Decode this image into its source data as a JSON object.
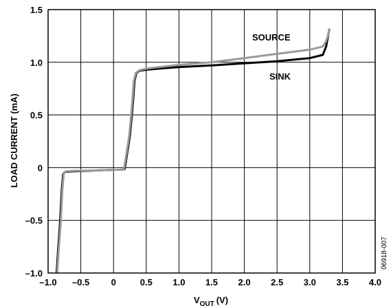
{
  "chart_data": {
    "type": "line",
    "title": "",
    "xlabel": "V",
    "xlabel_subscript": "OUT",
    "xlabel_unit": "(V)",
    "ylabel": "LOAD CURRENT (mA)",
    "xlim": [
      -1.0,
      4.0
    ],
    "ylim": [
      -1.0,
      1.5
    ],
    "x_ticks": [
      "–1.0",
      "–0.5",
      "0",
      "0.5",
      "1.0",
      "1.5",
      "2.0",
      "2.5",
      "3.0",
      "3.5",
      "4.0"
    ],
    "y_ticks": [
      "–1.0",
      "–0.5",
      "0",
      "0.5",
      "1.0",
      "1.5"
    ],
    "y_tick_values": [
      -1.0,
      -0.5,
      0,
      0.5,
      1.0,
      1.5
    ],
    "x_tick_values": [
      -1.0,
      -0.5,
      0,
      0.5,
      1.0,
      1.5,
      2.0,
      2.5,
      3.0,
      3.5,
      4.0
    ],
    "grid": true,
    "figure_id": "06918-007",
    "series": [
      {
        "name": "SINK",
        "color": "#000000",
        "x": [
          -0.87,
          -0.85,
          -0.82,
          -0.79,
          -0.77,
          -0.74,
          -0.6,
          -0.4,
          -0.2,
          0.0,
          0.1,
          0.17,
          0.2,
          0.25,
          0.28,
          0.3,
          0.32,
          0.35,
          0.4,
          0.5,
          0.7,
          1.0,
          1.5,
          2.0,
          2.5,
          3.0,
          3.2,
          3.25,
          3.28,
          3.3
        ],
        "y": [
          -1.0,
          -0.8,
          -0.55,
          -0.2,
          -0.06,
          -0.04,
          -0.035,
          -0.03,
          -0.025,
          -0.02,
          -0.02,
          -0.015,
          0.1,
          0.3,
          0.5,
          0.65,
          0.82,
          0.9,
          0.92,
          0.93,
          0.94,
          0.955,
          0.97,
          0.99,
          1.01,
          1.04,
          1.07,
          1.15,
          1.25,
          1.32
        ]
      },
      {
        "name": "SOURCE",
        "color": "#9a9a9a",
        "x": [
          -0.86,
          -0.84,
          -0.81,
          -0.78,
          -0.76,
          -0.73,
          -0.6,
          -0.4,
          -0.2,
          0.0,
          0.1,
          0.16,
          0.19,
          0.24,
          0.27,
          0.29,
          0.31,
          0.34,
          0.4,
          0.5,
          0.7,
          1.0,
          1.5,
          2.0,
          2.5,
          3.0,
          3.2,
          3.25,
          3.28,
          3.3
        ],
        "y": [
          -1.0,
          -0.8,
          -0.55,
          -0.2,
          -0.05,
          -0.035,
          -0.03,
          -0.028,
          -0.025,
          -0.02,
          -0.02,
          -0.015,
          0.1,
          0.3,
          0.5,
          0.65,
          0.82,
          0.9,
          0.925,
          0.94,
          0.955,
          0.975,
          1.0,
          1.04,
          1.08,
          1.12,
          1.15,
          1.2,
          1.26,
          1.32
        ]
      }
    ]
  }
}
